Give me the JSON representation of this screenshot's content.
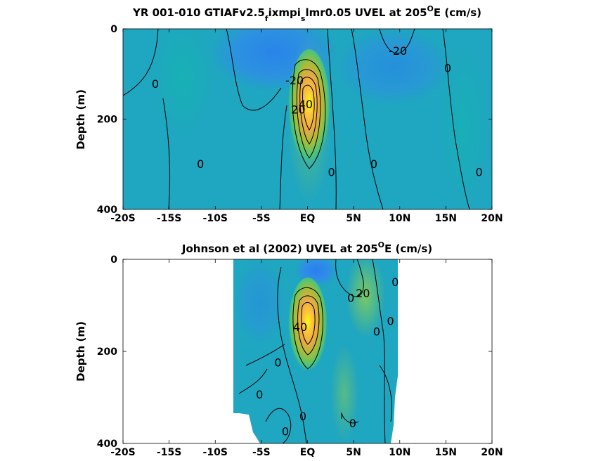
{
  "chart_data": [
    {
      "type": "heatmap",
      "subtype": "filled-contour",
      "title": "YR 001-010 GTIAFv2.5",
      "title_sub1": "f",
      "title_mid": "ixmpi",
      "title_sub2": "s",
      "title_tail": "lmr0.05 UVEL at 205",
      "title_sup": "O",
      "title_end": "E (cm/s)",
      "xlabel": "",
      "ylabel": "Depth (m)",
      "xlim": [
        -20,
        20
      ],
      "ylim": [
        0,
        400
      ],
      "y_reversed": true,
      "xticks": [
        -20,
        -15,
        -10,
        -5,
        0,
        5,
        10,
        15,
        20
      ],
      "xtick_labels": [
        "-20S",
        "-15S",
        "-10S",
        "-5S",
        "EQ",
        "5N",
        "10N",
        "15N",
        "20N"
      ],
      "yticks": [
        0,
        200,
        400
      ],
      "ytick_labels": [
        "0",
        "200",
        "400"
      ],
      "data_extent_x": [
        -20,
        20
      ],
      "colormap": "parula",
      "features": [
        {
          "name": "equatorial undercurrent core",
          "lat": 0.3,
          "depth": 150,
          "value": 100
        },
        {
          "name": "westward surface flow",
          "lat": -1.5,
          "depth": 30,
          "value": -25
        }
      ],
      "contour_labels": [
        {
          "text": "-20",
          "lat": -1.4,
          "depth": 115
        },
        {
          "text": "-20",
          "lat": 9.8,
          "depth": 50
        },
        {
          "text": "0",
          "lat": -16.5,
          "depth": 123
        },
        {
          "text": "0",
          "lat": 15.2,
          "depth": 88
        },
        {
          "text": "0",
          "lat": -11.6,
          "depth": 300
        },
        {
          "text": "0",
          "lat": 2.6,
          "depth": 318
        },
        {
          "text": "0",
          "lat": 7.2,
          "depth": 300
        },
        {
          "text": "0",
          "lat": 18.6,
          "depth": 318
        },
        {
          "text": "20",
          "lat": -1.0,
          "depth": 180
        },
        {
          "text": "40",
          "lat": -0.2,
          "depth": 168
        }
      ]
    },
    {
      "type": "heatmap",
      "subtype": "filled-contour",
      "title": "Johnson et al (2002) UVEL at 205",
      "title_sup": "O",
      "title_end": "E (cm/s)",
      "xlabel": "",
      "ylabel": "Depth (m)",
      "xlim": [
        -20,
        20
      ],
      "ylim": [
        0,
        400
      ],
      "y_reversed": true,
      "xticks": [
        -20,
        -15,
        -10,
        -5,
        0,
        5,
        10,
        15,
        20
      ],
      "xtick_labels": [
        "-20S",
        "-15S",
        "-10S",
        "-5S",
        "EQ",
        "5N",
        "10N",
        "15N",
        "20N"
      ],
      "yticks": [
        0,
        200,
        400
      ],
      "ytick_labels": [
        "0",
        "200",
        "400"
      ],
      "data_extent_x": [
        -8,
        10
      ],
      "colormap": "parula",
      "features": [
        {
          "name": "equatorial undercurrent core",
          "lat": 0.0,
          "depth": 145,
          "value": 100
        },
        {
          "name": "westward surface flow",
          "lat": 2.5,
          "depth": 20,
          "value": -30
        },
        {
          "name": "eastward NECC",
          "lat": 6.5,
          "depth": 60,
          "value": 30
        }
      ],
      "contour_labels": [
        {
          "text": "20",
          "lat": 6.0,
          "depth": 75
        },
        {
          "text": "0",
          "lat": 4.7,
          "depth": 85
        },
        {
          "text": "0",
          "lat": 9.5,
          "depth": 50
        },
        {
          "text": "0",
          "lat": 9.0,
          "depth": 135
        },
        {
          "text": "0",
          "lat": 7.5,
          "depth": 158
        },
        {
          "text": "40",
          "lat": -0.8,
          "depth": 148
        },
        {
          "text": "0",
          "lat": -3.2,
          "depth": 225
        },
        {
          "text": "0",
          "lat": -5.2,
          "depth": 295
        },
        {
          "text": "0",
          "lat": -0.5,
          "depth": 342
        },
        {
          "text": "0",
          "lat": -2.4,
          "depth": 375
        },
        {
          "text": "0",
          "lat": 4.9,
          "depth": 357
        }
      ]
    }
  ]
}
